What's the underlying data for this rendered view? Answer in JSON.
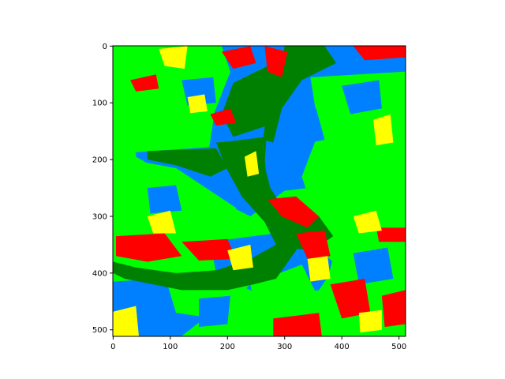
{
  "chart_data": {
    "type": "heatmap",
    "title": "",
    "xlabel": "",
    "ylabel": "",
    "xlim": [
      0,
      511
    ],
    "ylim": [
      511,
      0
    ],
    "x_ticks": [
      0,
      100,
      200,
      300,
      400,
      500
    ],
    "y_ticks": [
      0,
      100,
      200,
      300,
      400,
      500
    ],
    "grid": false,
    "legend": "none",
    "classes": [
      {
        "name": "dark-green",
        "color": "#008000"
      },
      {
        "name": "light-green",
        "color": "#00ff00"
      },
      {
        "name": "blue",
        "color": "#0080ff"
      },
      {
        "name": "red",
        "color": "#ff0000"
      },
      {
        "name": "yellow",
        "color": "#ffff00"
      }
    ],
    "regions": [
      {
        "class": "blue",
        "points": [
          [
            40,
            0
          ],
          [
            511,
            0
          ],
          [
            511,
            210
          ],
          [
            420,
            240
          ],
          [
            300,
            255
          ],
          [
            240,
            300
          ],
          [
            110,
            235
          ],
          [
            40,
            195
          ]
        ]
      },
      {
        "class": "blue",
        "points": [
          [
            170,
            345
          ],
          [
            320,
            325
          ],
          [
            390,
            385
          ],
          [
            360,
            430
          ],
          [
            270,
            445
          ],
          [
            180,
            400
          ]
        ]
      },
      {
        "class": "blue",
        "points": [
          [
            0,
            415
          ],
          [
            160,
            405
          ],
          [
            210,
            440
          ],
          [
            120,
            511
          ],
          [
            0,
            511
          ]
        ]
      },
      {
        "class": "light-green",
        "points": [
          [
            0,
            0
          ],
          [
            190,
            0
          ],
          [
            205,
            45
          ],
          [
            178,
            115
          ],
          [
            168,
            178
          ],
          [
            70,
            185
          ],
          [
            0,
            190
          ]
        ]
      },
      {
        "class": "light-green",
        "points": [
          [
            345,
            55
          ],
          [
            511,
            45
          ],
          [
            511,
            260
          ],
          [
            470,
            305
          ],
          [
            420,
            325
          ],
          [
            360,
            320
          ],
          [
            330,
            230
          ],
          [
            360,
            150
          ]
        ]
      },
      {
        "class": "light-green",
        "points": [
          [
            0,
            195
          ],
          [
            110,
            215
          ],
          [
            215,
            285
          ],
          [
            220,
            330
          ],
          [
            120,
            325
          ],
          [
            0,
            330
          ]
        ]
      },
      {
        "class": "light-green",
        "points": [
          [
            395,
            335
          ],
          [
            511,
            300
          ],
          [
            511,
            511
          ],
          [
            430,
            511
          ],
          [
            390,
            460
          ],
          [
            375,
            410
          ]
        ]
      },
      {
        "class": "light-green",
        "points": [
          [
            95,
            420
          ],
          [
            215,
            390
          ],
          [
            240,
            420
          ],
          [
            180,
            480
          ],
          [
            110,
            470
          ]
        ]
      },
      {
        "class": "light-green",
        "points": [
          [
            240,
            420
          ],
          [
            330,
            385
          ],
          [
            360,
            445
          ],
          [
            300,
            490
          ],
          [
            250,
            470
          ]
        ]
      },
      {
        "class": "light-green",
        "points": [
          [
            20,
            20
          ],
          [
            110,
            15
          ],
          [
            95,
            90
          ],
          [
            30,
            85
          ]
        ]
      },
      {
        "class": "light-green",
        "points": [
          [
            0,
            340
          ],
          [
            60,
            330
          ],
          [
            80,
            375
          ],
          [
            0,
            385
          ]
        ]
      },
      {
        "class": "blue",
        "points": [
          [
            300,
            120
          ],
          [
            355,
            110
          ],
          [
            370,
            165
          ],
          [
            320,
            175
          ]
        ]
      },
      {
        "class": "blue",
        "points": [
          [
            400,
            70
          ],
          [
            465,
            60
          ],
          [
            470,
            110
          ],
          [
            415,
            120
          ]
        ]
      },
      {
        "class": "blue",
        "points": [
          [
            0,
            430
          ],
          [
            60,
            425
          ],
          [
            70,
            470
          ],
          [
            0,
            480
          ]
        ]
      },
      {
        "class": "blue",
        "points": [
          [
            420,
            365
          ],
          [
            480,
            355
          ],
          [
            490,
            410
          ],
          [
            430,
            420
          ]
        ]
      },
      {
        "class": "blue",
        "points": [
          [
            120,
            60
          ],
          [
            175,
            55
          ],
          [
            180,
            100
          ],
          [
            130,
            105
          ]
        ]
      },
      {
        "class": "blue",
        "points": [
          [
            60,
            250
          ],
          [
            110,
            245
          ],
          [
            120,
            290
          ],
          [
            65,
            295
          ]
        ]
      },
      {
        "class": "blue",
        "points": [
          [
            150,
            445
          ],
          [
            205,
            440
          ],
          [
            200,
            490
          ],
          [
            150,
            495
          ]
        ]
      },
      {
        "class": "dark-green",
        "points": [
          [
            300,
            0
          ],
          [
            370,
            0
          ],
          [
            390,
            30
          ],
          [
            330,
            60
          ],
          [
            295,
            110
          ],
          [
            280,
            170
          ],
          [
            262,
            165
          ],
          [
            270,
            110
          ],
          [
            290,
            55
          ]
        ]
      },
      {
        "class": "dark-green",
        "points": [
          [
            210,
            65
          ],
          [
            300,
            20
          ],
          [
            360,
            5
          ],
          [
            320,
            50
          ],
          [
            290,
            95
          ],
          [
            270,
            140
          ],
          [
            210,
            160
          ],
          [
            190,
            120
          ]
        ]
      },
      {
        "class": "dark-green",
        "points": [
          [
            186,
            170
          ],
          [
            268,
            160
          ],
          [
            262,
            250
          ],
          [
            300,
            305
          ],
          [
            330,
            330
          ],
          [
            300,
            290
          ],
          [
            275,
            250
          ],
          [
            262,
            200
          ]
        ]
      },
      {
        "class": "dark-green",
        "points": [
          [
            180,
            170
          ],
          [
            262,
            165
          ],
          [
            270,
            250
          ],
          [
            300,
            295
          ],
          [
            345,
            320
          ],
          [
            320,
            360
          ],
          [
            285,
            410
          ],
          [
            245,
            420
          ],
          [
            200,
            430
          ],
          [
            120,
            430
          ],
          [
            20,
            410
          ],
          [
            0,
            400
          ],
          [
            0,
            380
          ],
          [
            40,
            390
          ],
          [
            110,
            400
          ],
          [
            180,
            395
          ],
          [
            240,
            375
          ],
          [
            285,
            350
          ],
          [
            265,
            310
          ],
          [
            225,
            265
          ],
          [
            198,
            215
          ]
        ]
      },
      {
        "class": "dark-green",
        "points": [
          [
            60,
            185
          ],
          [
            180,
            180
          ],
          [
            200,
            215
          ],
          [
            170,
            230
          ],
          [
            110,
            210
          ],
          [
            60,
            200
          ]
        ]
      },
      {
        "class": "dark-green",
        "points": [
          [
            280,
            285
          ],
          [
            360,
            300
          ],
          [
            385,
            335
          ],
          [
            350,
            360
          ],
          [
            300,
            355
          ],
          [
            270,
            320
          ]
        ]
      },
      {
        "class": "red",
        "points": [
          [
            190,
            10
          ],
          [
            240,
            0
          ],
          [
            250,
            30
          ],
          [
            210,
            40
          ]
        ]
      },
      {
        "class": "red",
        "points": [
          [
            265,
            0
          ],
          [
            305,
            10
          ],
          [
            295,
            55
          ],
          [
            270,
            45
          ]
        ]
      },
      {
        "class": "red",
        "points": [
          [
            30,
            60
          ],
          [
            75,
            50
          ],
          [
            80,
            75
          ],
          [
            40,
            80
          ]
        ]
      },
      {
        "class": "red",
        "points": [
          [
            420,
            0
          ],
          [
            511,
            0
          ],
          [
            511,
            20
          ],
          [
            440,
            25
          ]
        ]
      },
      {
        "class": "red",
        "points": [
          [
            5,
            335
          ],
          [
            90,
            330
          ],
          [
            120,
            370
          ],
          [
            60,
            380
          ],
          [
            5,
            370
          ]
        ]
      },
      {
        "class": "red",
        "points": [
          [
            120,
            345
          ],
          [
            200,
            340
          ],
          [
            215,
            375
          ],
          [
            150,
            378
          ]
        ]
      },
      {
        "class": "red",
        "points": [
          [
            270,
            270
          ],
          [
            320,
            265
          ],
          [
            360,
            300
          ],
          [
            340,
            320
          ],
          [
            295,
            300
          ]
        ]
      },
      {
        "class": "red",
        "points": [
          [
            320,
            330
          ],
          [
            370,
            325
          ],
          [
            380,
            370
          ],
          [
            340,
            375
          ]
        ]
      },
      {
        "class": "red",
        "points": [
          [
            380,
            420
          ],
          [
            440,
            410
          ],
          [
            450,
            470
          ],
          [
            400,
            480
          ]
        ]
      },
      {
        "class": "red",
        "points": [
          [
            280,
            480
          ],
          [
            360,
            470
          ],
          [
            365,
            511
          ],
          [
            280,
            511
          ]
        ]
      },
      {
        "class": "red",
        "points": [
          [
            470,
            440
          ],
          [
            511,
            430
          ],
          [
            511,
            490
          ],
          [
            475,
            495
          ]
        ]
      },
      {
        "class": "red",
        "points": [
          [
            460,
            320
          ],
          [
            511,
            320
          ],
          [
            511,
            345
          ],
          [
            465,
            345
          ]
        ]
      },
      {
        "class": "red",
        "points": [
          [
            170,
            120
          ],
          [
            205,
            110
          ],
          [
            215,
            135
          ],
          [
            180,
            140
          ]
        ]
      },
      {
        "class": "yellow",
        "points": [
          [
            80,
            5
          ],
          [
            130,
            0
          ],
          [
            125,
            40
          ],
          [
            90,
            35
          ]
        ]
      },
      {
        "class": "yellow",
        "points": [
          [
            230,
            195
          ],
          [
            250,
            185
          ],
          [
            255,
            225
          ],
          [
            235,
            230
          ]
        ]
      },
      {
        "class": "yellow",
        "points": [
          [
            0,
            468
          ],
          [
            40,
            458
          ],
          [
            45,
            511
          ],
          [
            0,
            511
          ]
        ]
      },
      {
        "class": "yellow",
        "points": [
          [
            60,
            300
          ],
          [
            100,
            290
          ],
          [
            110,
            330
          ],
          [
            70,
            330
          ]
        ]
      },
      {
        "class": "yellow",
        "points": [
          [
            200,
            360
          ],
          [
            240,
            350
          ],
          [
            245,
            390
          ],
          [
            210,
            395
          ]
        ]
      },
      {
        "class": "yellow",
        "points": [
          [
            420,
            300
          ],
          [
            460,
            290
          ],
          [
            470,
            325
          ],
          [
            430,
            330
          ]
        ]
      },
      {
        "class": "yellow",
        "points": [
          [
            455,
            130
          ],
          [
            485,
            120
          ],
          [
            490,
            170
          ],
          [
            460,
            175
          ]
        ]
      },
      {
        "class": "yellow",
        "points": [
          [
            340,
            375
          ],
          [
            375,
            370
          ],
          [
            380,
            410
          ],
          [
            345,
            415
          ]
        ]
      },
      {
        "class": "yellow",
        "points": [
          [
            430,
            470
          ],
          [
            470,
            465
          ],
          [
            470,
            500
          ],
          [
            432,
            505
          ]
        ]
      },
      {
        "class": "yellow",
        "points": [
          [
            130,
            90
          ],
          [
            160,
            85
          ],
          [
            165,
            115
          ],
          [
            135,
            118
          ]
        ]
      }
    ]
  }
}
